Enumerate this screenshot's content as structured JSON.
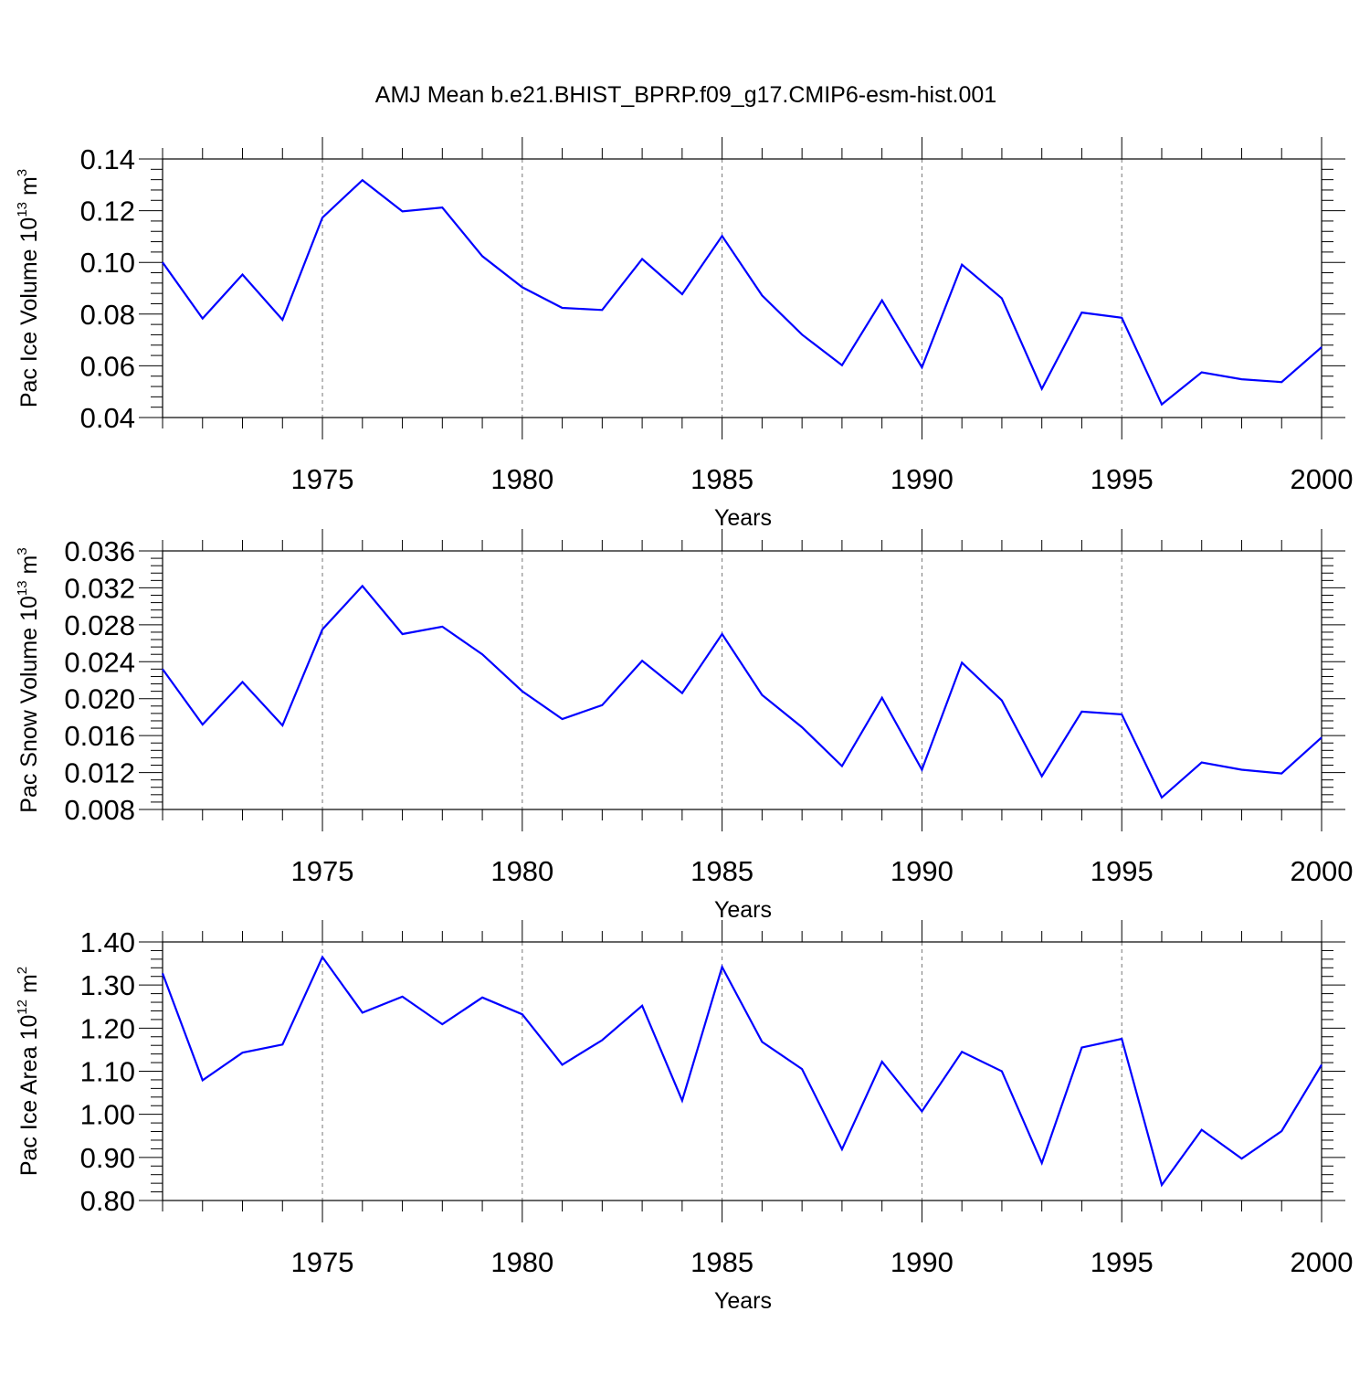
{
  "title": "AMJ Mean b.e21.BHIST_BPRP.f09_g17.CMIP6-esm-hist.001",
  "colors": {
    "line": "#0000ff",
    "axis": "#000000",
    "grid": "#777777"
  },
  "chart_data": [
    {
      "type": "line",
      "ylabel": {
        "text": "Pac Ice Volume 10",
        "sup": "13",
        "unit": " m",
        "unit_sup": "3"
      },
      "xlabel": "Years",
      "xlim": [
        1971,
        2000
      ],
      "ylim": [
        0.04,
        0.14
      ],
      "yticks": [
        "0.04",
        "0.06",
        "0.08",
        "0.10",
        "0.12",
        "0.14"
      ],
      "ytick_values": [
        0.04,
        0.06,
        0.08,
        0.1,
        0.12,
        0.14
      ],
      "xticks": [
        "1975",
        "1980",
        "1985",
        "1990",
        "1995",
        "2000"
      ],
      "xtick_values": [
        1975,
        1980,
        1985,
        1990,
        1995,
        2000
      ],
      "grid": "dashed vertical at major x ticks",
      "x": [
        1971,
        1972,
        1973,
        1974,
        1975,
        1976,
        1977,
        1978,
        1979,
        1980,
        1981,
        1982,
        1983,
        1984,
        1985,
        1986,
        1987,
        1988,
        1989,
        1990,
        1991,
        1992,
        1993,
        1994,
        1995,
        1996,
        1997,
        1998,
        1999,
        2000
      ],
      "series": [
        {
          "values": [
            0.1,
            0.0783,
            0.0953,
            0.0778,
            0.1173,
            0.1318,
            0.1197,
            0.1212,
            0.1024,
            0.0904,
            0.0824,
            0.0816,
            0.1013,
            0.0877,
            0.1102,
            0.0872,
            0.0721,
            0.0602,
            0.0853,
            0.0594,
            0.0991,
            0.0861,
            0.0511,
            0.0806,
            0.0786,
            0.0451,
            0.0575,
            0.0548,
            0.0537,
            0.0672
          ]
        }
      ]
    },
    {
      "type": "line",
      "ylabel": {
        "text": "Pac Snow Volume 10",
        "sup": "13",
        "unit": " m",
        "unit_sup": "3"
      },
      "xlabel": "Years",
      "xlim": [
        1971,
        2000
      ],
      "ylim": [
        0.008,
        0.036
      ],
      "yticks": [
        "0.008",
        "0.012",
        "0.016",
        "0.020",
        "0.024",
        "0.028",
        "0.032",
        "0.036"
      ],
      "ytick_values": [
        0.008,
        0.012,
        0.016,
        0.02,
        0.024,
        0.028,
        0.032,
        0.036
      ],
      "xticks": [
        "1975",
        "1980",
        "1985",
        "1990",
        "1995",
        "2000"
      ],
      "xtick_values": [
        1975,
        1980,
        1985,
        1990,
        1995,
        2000
      ],
      "grid": "dashed vertical at major x ticks",
      "x": [
        1971,
        1972,
        1973,
        1974,
        1975,
        1976,
        1977,
        1978,
        1979,
        1980,
        1981,
        1982,
        1983,
        1984,
        1985,
        1986,
        1987,
        1988,
        1989,
        1990,
        1991,
        1992,
        1993,
        1994,
        1995,
        1996,
        1997,
        1998,
        1999,
        2000
      ],
      "series": [
        {
          "values": [
            0.0232,
            0.0172,
            0.0218,
            0.0171,
            0.0275,
            0.0322,
            0.027,
            0.0278,
            0.0248,
            0.0208,
            0.0178,
            0.0193,
            0.0241,
            0.0206,
            0.027,
            0.0204,
            0.0169,
            0.0127,
            0.0201,
            0.0123,
            0.0239,
            0.0198,
            0.0116,
            0.0186,
            0.0183,
            0.0093,
            0.0131,
            0.0123,
            0.0119,
            0.0158
          ]
        }
      ]
    },
    {
      "type": "line",
      "ylabel": {
        "text": "Pac Ice Area 10",
        "sup": "12",
        "unit": " m",
        "unit_sup": "2"
      },
      "xlabel": "Years",
      "xlim": [
        1971,
        2000
      ],
      "ylim": [
        0.8,
        1.4
      ],
      "yticks": [
        "0.80",
        "0.90",
        "1.00",
        "1.10",
        "1.20",
        "1.30",
        "1.40"
      ],
      "ytick_values": [
        0.8,
        0.9,
        1.0,
        1.1,
        1.2,
        1.3,
        1.4
      ],
      "xticks": [
        "1975",
        "1980",
        "1985",
        "1990",
        "1995",
        "2000"
      ],
      "xtick_values": [
        1975,
        1980,
        1985,
        1990,
        1995,
        2000
      ],
      "grid": "dashed vertical at major x ticks",
      "x": [
        1971,
        1972,
        1973,
        1974,
        1975,
        1976,
        1977,
        1978,
        1979,
        1980,
        1981,
        1982,
        1983,
        1984,
        1985,
        1986,
        1987,
        1988,
        1989,
        1990,
        1991,
        1992,
        1993,
        1994,
        1995,
        1996,
        1997,
        1998,
        1999,
        2000
      ],
      "series": [
        {
          "values": [
            1.327,
            1.079,
            1.143,
            1.162,
            1.365,
            1.236,
            1.273,
            1.209,
            1.271,
            1.232,
            1.115,
            1.172,
            1.252,
            1.032,
            1.342,
            1.168,
            1.105,
            0.919,
            1.122,
            1.007,
            1.145,
            1.1,
            0.887,
            1.155,
            1.175,
            0.836,
            0.964,
            0.897,
            0.961,
            1.115
          ]
        }
      ]
    }
  ]
}
